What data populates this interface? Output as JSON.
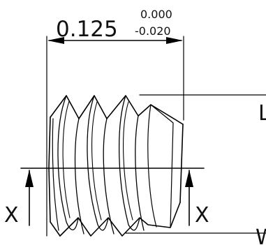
{
  "dimension": {
    "nominal": "0.125",
    "tol_upper": "0.000",
    "tol_lower": "-0.020"
  },
  "section": {
    "left_label": "X",
    "right_label": "X"
  },
  "cropped_labels": {
    "top_right": "L",
    "bottom_right": "W"
  }
}
